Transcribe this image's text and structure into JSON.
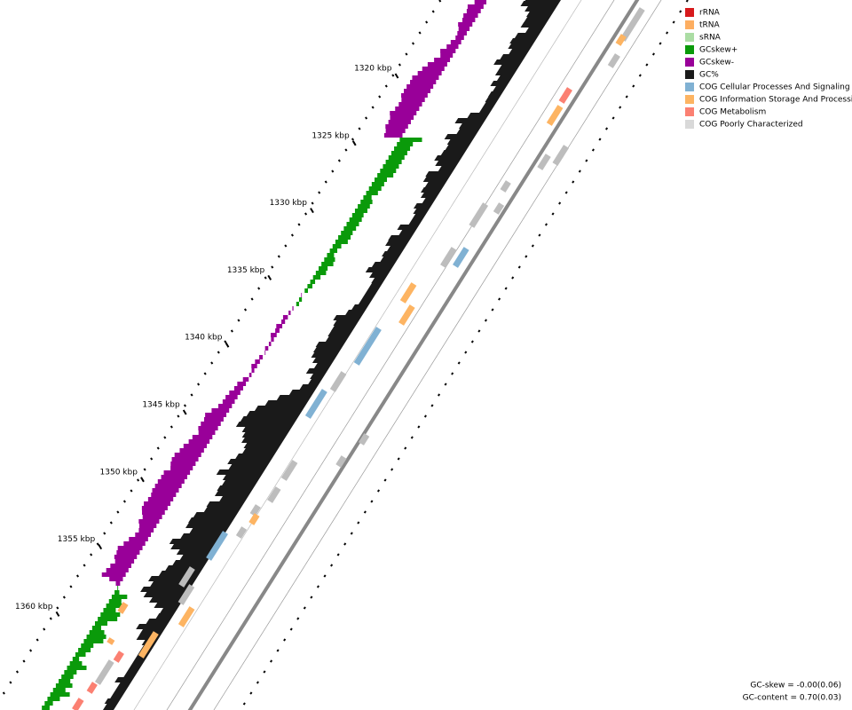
{
  "legend": [
    {
      "label": "rRNA",
      "color": "#d7191c"
    },
    {
      "label": "tRNA",
      "color": "#fdae61"
    },
    {
      "label": "sRNA",
      "color": "#abdda4"
    },
    {
      "label": "GCskew+",
      "color": "#0a9a0a"
    },
    {
      "label": "GCskew-",
      "color": "#990099"
    },
    {
      "label": "GC%",
      "color": "#1a1a1a"
    },
    {
      "label": "COG Cellular Processes And Signaling",
      "color": "#80b1d3"
    },
    {
      "label": "COG Information Storage And Processing",
      "color": "#fdb462"
    },
    {
      "label": "COG Metabolism",
      "color": "#fb8072"
    },
    {
      "label": "COG Poorly Characterized",
      "color": "#d9d9d9"
    }
  ],
  "scale_labels": [
    "1320 kbp",
    "1325 kbp",
    "1330 kbp",
    "1335 kbp",
    "1340 kbp",
    "1345 kbp",
    "1350 kbp",
    "1355 kbp",
    "1360 kbp"
  ],
  "stats": [
    "GC-skew = -0.00(0.06)",
    "GC-content = 0.70(0.03)"
  ]
}
